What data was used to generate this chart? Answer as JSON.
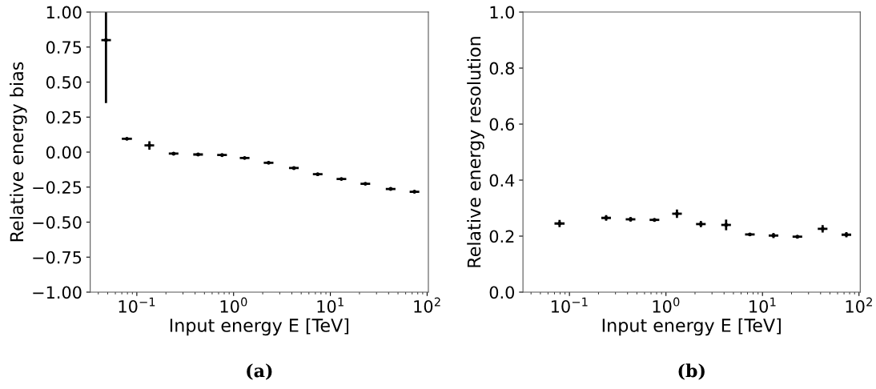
{
  "chart_data": [
    {
      "type": "scatter",
      "xlabel": "Input energy E [TeV]",
      "ylabel": "Relative energy bias",
      "log": "x",
      "grid": false,
      "legend": false,
      "x": [
        0.048,
        0.079,
        0.135,
        0.24,
        0.43,
        0.76,
        1.3,
        2.3,
        4.2,
        7.4,
        13,
        23,
        42,
        74
      ],
      "series": [
        {
          "color": "#000000",
          "values": [
            0.8,
            0.095,
            0.048,
            -0.011,
            -0.017,
            -0.021,
            -0.042,
            -0.076,
            -0.114,
            -0.158,
            -0.192,
            -0.226,
            -0.263,
            -0.283
          ],
          "errors": [
            [
              0.35,
              1.0
            ],
            null,
            0.03,
            null,
            null,
            null,
            null,
            null,
            null,
            null,
            null,
            null,
            null,
            null
          ],
          "xerrors": [
            [
              0.043,
              0.054
            ],
            [
              0.07,
              0.089
            ],
            [
              0.12,
              0.151
            ],
            [
              0.214,
              0.269
            ],
            [
              0.383,
              0.482
            ],
            [
              0.677,
              0.853
            ],
            [
              1.16,
              1.46
            ],
            [
              2.05,
              2.58
            ],
            [
              3.74,
              4.71
            ],
            [
              6.6,
              8.3
            ],
            [
              11.6,
              14.6
            ],
            [
              20.5,
              25.8
            ],
            [
              37.4,
              47.1
            ],
            [
              66,
              83
            ]
          ]
        }
      ],
      "xlim": [
        0.033,
        103
      ],
      "xticks": [
        {
          "value": 0.1,
          "label": "10$^{−1}$"
        },
        {
          "value": 1,
          "label": "10$^{0}$"
        },
        {
          "value": 10,
          "label": "10$^{1}$"
        },
        {
          "value": 100,
          "label": "10$^{2}$"
        }
      ],
      "ylim": [
        -1.0,
        1.0
      ],
      "yticks": [
        {
          "value": -1,
          "label": "−1.00"
        },
        {
          "value": -0.75,
          "label": "−0.75"
        },
        {
          "value": -0.5,
          "label": "−0.50"
        },
        {
          "value": -0.25,
          "label": "−0.25"
        },
        {
          "value": 0,
          "label": "0.00"
        },
        {
          "value": 0.25,
          "label": "0.25"
        },
        {
          "value": 0.5,
          "label": "0.50"
        },
        {
          "value": 0.75,
          "label": "0.75"
        },
        {
          "value": 1,
          "label": "1.00"
        }
      ],
      "annotations": [
        "(a)"
      ]
    },
    {
      "type": "scatter",
      "xlabel": "Input energy E [TeV]",
      "ylabel": "Relative energy resolution",
      "log": "x",
      "grid": false,
      "legend": false,
      "x": [
        0.079,
        0.24,
        0.43,
        0.76,
        1.3,
        2.3,
        4.2,
        7.4,
        13,
        23,
        42,
        74
      ],
      "series": [
        {
          "color": "#000000",
          "values": [
            0.245,
            0.265,
            0.26,
            0.258,
            0.28,
            0.243,
            0.24,
            0.206,
            0.202,
            0.198,
            0.226,
            0.205
          ],
          "errors": [
            0.013,
            0.01,
            0.008,
            0.005,
            0.015,
            0.011,
            0.019,
            0.005,
            0.009,
            0.005,
            0.013,
            0.009
          ],
          "xerrors": [
            [
              0.07,
              0.089
            ],
            [
              0.214,
              0.269
            ],
            [
              0.383,
              0.482
            ],
            [
              0.677,
              0.853
            ],
            [
              1.16,
              1.46
            ],
            [
              2.05,
              2.58
            ],
            [
              3.74,
              4.71
            ],
            [
              6.6,
              8.3
            ],
            [
              11.6,
              14.6
            ],
            [
              20.5,
              25.8
            ],
            [
              37.4,
              47.1
            ],
            [
              66,
              83
            ]
          ]
        }
      ],
      "xlim": [
        0.033,
        103
      ],
      "xticks": [
        {
          "value": 0.1,
          "label": "10$^{−1}$"
        },
        {
          "value": 1,
          "label": "10$^{0}$"
        },
        {
          "value": 10,
          "label": "10$^{1}$"
        },
        {
          "value": 100,
          "label": "10$^{2}$"
        }
      ],
      "ylim": [
        0.0,
        1.0
      ],
      "yticks": [
        {
          "value": 0,
          "label": "0.0"
        },
        {
          "value": 0.2,
          "label": "0.2"
        },
        {
          "value": 0.4,
          "label": "0.4"
        },
        {
          "value": 0.6,
          "label": "0.6"
        },
        {
          "value": 0.8,
          "label": "0.8"
        },
        {
          "value": 1,
          "label": "1.0"
        }
      ],
      "annotations": [
        "(b)"
      ]
    }
  ]
}
